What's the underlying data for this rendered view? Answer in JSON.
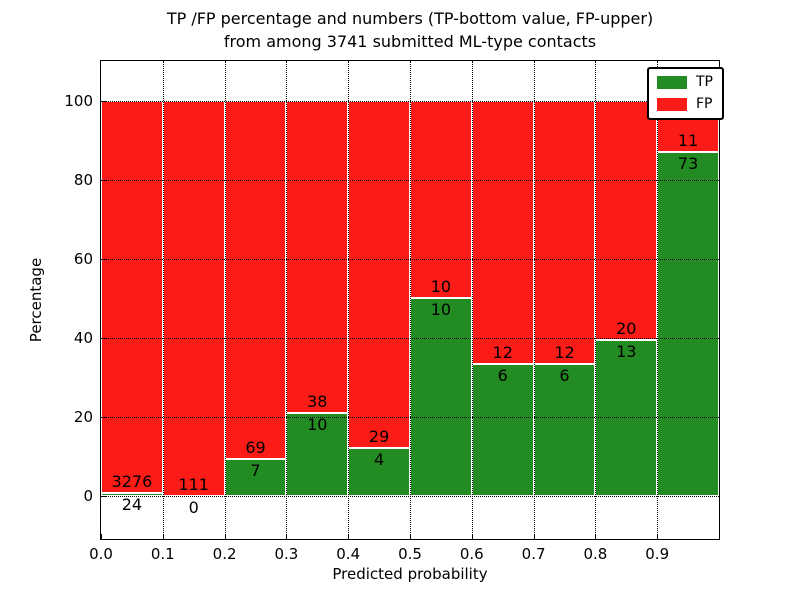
{
  "chart_data": {
    "type": "bar",
    "stacked": true,
    "normalized_to_percent": true,
    "title": "TP /FP percentage and numbers (TP-bottom value, FP-upper)",
    "subtitle": "from among 3741 submitted ML-type contacts",
    "xlabel": "Predicted probability",
    "ylabel": "Percentage",
    "total_contacts": 3741,
    "xlim": [
      0.0,
      1.0
    ],
    "ylim": [
      -11,
      110
    ],
    "grid": true,
    "grid_style": "dotted",
    "x_tick_labels": [
      "0.0",
      "0.1",
      "0.2",
      "0.3",
      "0.4",
      "0.5",
      "0.6",
      "0.7",
      "0.8",
      "0.9"
    ],
    "y_ticks": [
      0,
      20,
      40,
      60,
      80,
      100
    ],
    "bin_edges": [
      0.0,
      0.1,
      0.2,
      0.3,
      0.4,
      0.5,
      0.6,
      0.7,
      0.8,
      0.9,
      1.0
    ],
    "categories": [
      "0.0-0.1",
      "0.1-0.2",
      "0.2-0.3",
      "0.3-0.4",
      "0.4-0.5",
      "0.5-0.6",
      "0.6-0.7",
      "0.7-0.8",
      "0.8-0.9",
      "0.9-1.0"
    ],
    "series": [
      {
        "name": "TP",
        "color": "#228b22",
        "counts": [
          24,
          0,
          7,
          10,
          4,
          10,
          6,
          6,
          13,
          73
        ],
        "percent": [
          0.7,
          0.0,
          9.2,
          20.8,
          12.1,
          50.0,
          33.3,
          33.3,
          39.4,
          86.9
        ]
      },
      {
        "name": "FP",
        "color": "#fb1c17",
        "counts": [
          3276,
          111,
          69,
          38,
          29,
          10,
          12,
          12,
          20,
          11
        ],
        "percent": [
          99.3,
          100.0,
          90.8,
          79.2,
          87.9,
          50.0,
          66.7,
          66.7,
          60.6,
          13.1
        ]
      }
    ],
    "legend": [
      {
        "label": "TP",
        "color": "#228b22"
      },
      {
        "label": "FP",
        "color": "#fb1c17"
      }
    ],
    "legend_position": "upper-right",
    "bar_edge_color": "#ffffff",
    "axis_color": "#000000",
    "background_color": "#ffffff"
  }
}
